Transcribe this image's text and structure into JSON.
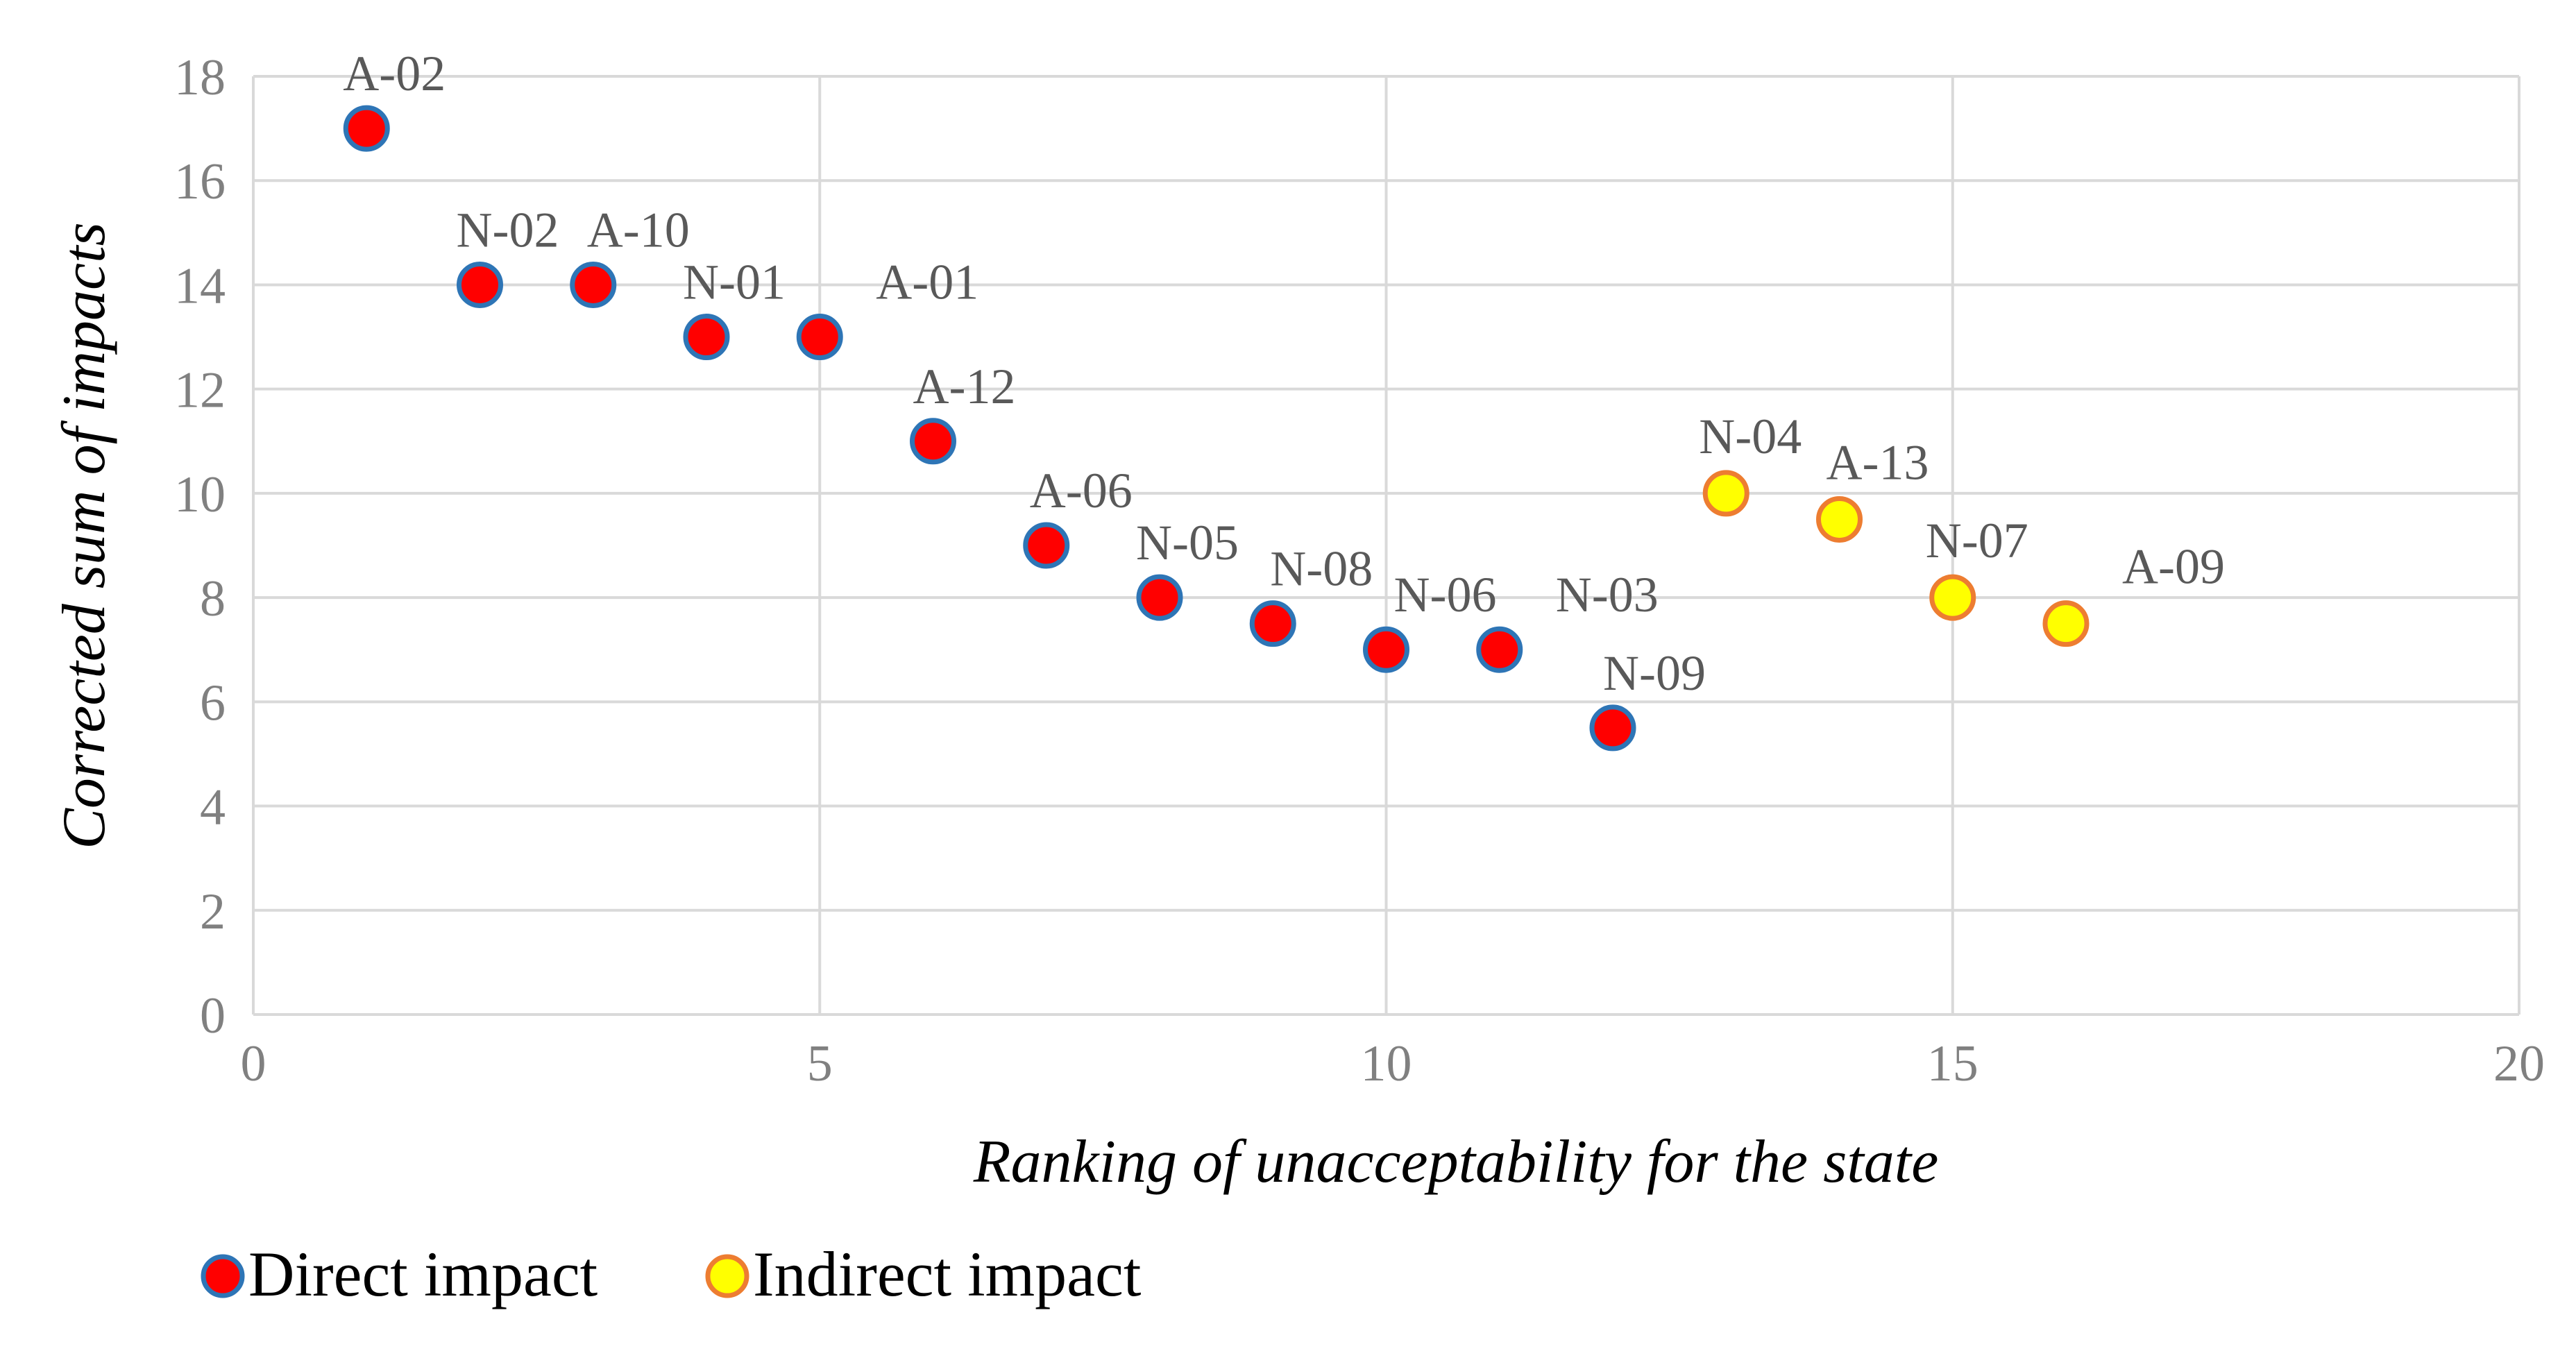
{
  "chart_data": {
    "type": "scatter",
    "xlabel": "Ranking of unacceptability for the state",
    "ylabel": "Corrected sum of impacts",
    "xlim": [
      0,
      20
    ],
    "ylim": [
      0,
      18
    ],
    "x_ticks": [
      0,
      5,
      10,
      15,
      20
    ],
    "y_ticks": [
      0,
      2,
      4,
      6,
      8,
      10,
      12,
      14,
      16,
      18
    ],
    "grid": true,
    "legend_placement": "bottom-left",
    "series": [
      {
        "name": "Direct impact",
        "fill": "#ff0000",
        "stroke": "#2e75b6",
        "points": [
          {
            "label": "A-02",
            "x": 1,
            "y": 17
          },
          {
            "label": "N-02",
            "x": 2,
            "y": 14
          },
          {
            "label": "A-10",
            "x": 3,
            "y": 14
          },
          {
            "label": "N-01",
            "x": 4,
            "y": 13
          },
          {
            "label": "A-01",
            "x": 5,
            "y": 13
          },
          {
            "label": "A-12",
            "x": 6,
            "y": 11
          },
          {
            "label": "A-06",
            "x": 7,
            "y": 9
          },
          {
            "label": "N-05",
            "x": 8,
            "y": 8
          },
          {
            "label": "N-08",
            "x": 9,
            "y": 7.5
          },
          {
            "label": "N-06",
            "x": 10,
            "y": 7
          },
          {
            "label": "N-03",
            "x": 11,
            "y": 7
          },
          {
            "label": "N-09",
            "x": 12,
            "y": 5.5
          }
        ]
      },
      {
        "name": "Indirect impact",
        "fill": "#ffff00",
        "stroke": "#ed7d31",
        "points": [
          {
            "label": "N-04",
            "x": 13,
            "y": 10
          },
          {
            "label": "A-13",
            "x": 14,
            "y": 9.5
          },
          {
            "label": "N-07",
            "x": 15,
            "y": 8
          },
          {
            "label": "A-09",
            "x": 16,
            "y": 7.5
          }
        ]
      }
    ]
  }
}
